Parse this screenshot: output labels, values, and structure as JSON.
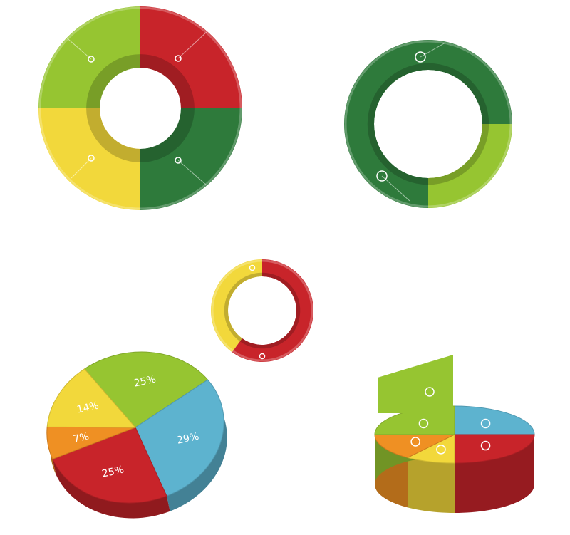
{
  "colors": {
    "lime": "#96c531",
    "red": "#c8242a",
    "yellow": "#f2d83b",
    "dark_green": "#2e7a3b",
    "blue": "#5db3cf",
    "orange": "#ef9023"
  },
  "chart_data": [
    {
      "type": "pie",
      "variant": "donut",
      "slices": [
        {
          "value": 25,
          "color": "#96c531"
        },
        {
          "value": 25,
          "color": "#c8242a"
        },
        {
          "value": 25,
          "color": "#2e7a3b"
        },
        {
          "value": 25,
          "color": "#f2d83b"
        }
      ]
    },
    {
      "type": "pie",
      "variant": "donut",
      "slices": [
        {
          "value": 75,
          "color": "#2e7a3b"
        },
        {
          "value": 25,
          "color": "#96c531"
        }
      ]
    },
    {
      "type": "pie",
      "variant": "donut",
      "slices": [
        {
          "value": 60,
          "color": "#c8242a"
        },
        {
          "value": 40,
          "color": "#f2d83b"
        }
      ]
    },
    {
      "type": "pie",
      "variant": "3d",
      "slices": [
        {
          "label": "25%",
          "value": 25,
          "color": "#96c531"
        },
        {
          "label": "29%",
          "value": 29,
          "color": "#5db3cf"
        },
        {
          "label": "25%",
          "value": 25,
          "color": "#c8242a"
        },
        {
          "label": "7%",
          "value": 7,
          "color": "#ef9023"
        },
        {
          "label": "14%",
          "value": 14,
          "color": "#f2d83b"
        }
      ]
    },
    {
      "type": "pie",
      "variant": "3d-cylinder",
      "slices": [
        {
          "value": 25,
          "color": "#5db3cf"
        },
        {
          "value": 25,
          "color": "#c8242a"
        },
        {
          "value": 10,
          "color": "#f2d83b"
        },
        {
          "value": 15,
          "color": "#ef9023"
        },
        {
          "value": 25,
          "color": "#96c531"
        }
      ]
    }
  ]
}
